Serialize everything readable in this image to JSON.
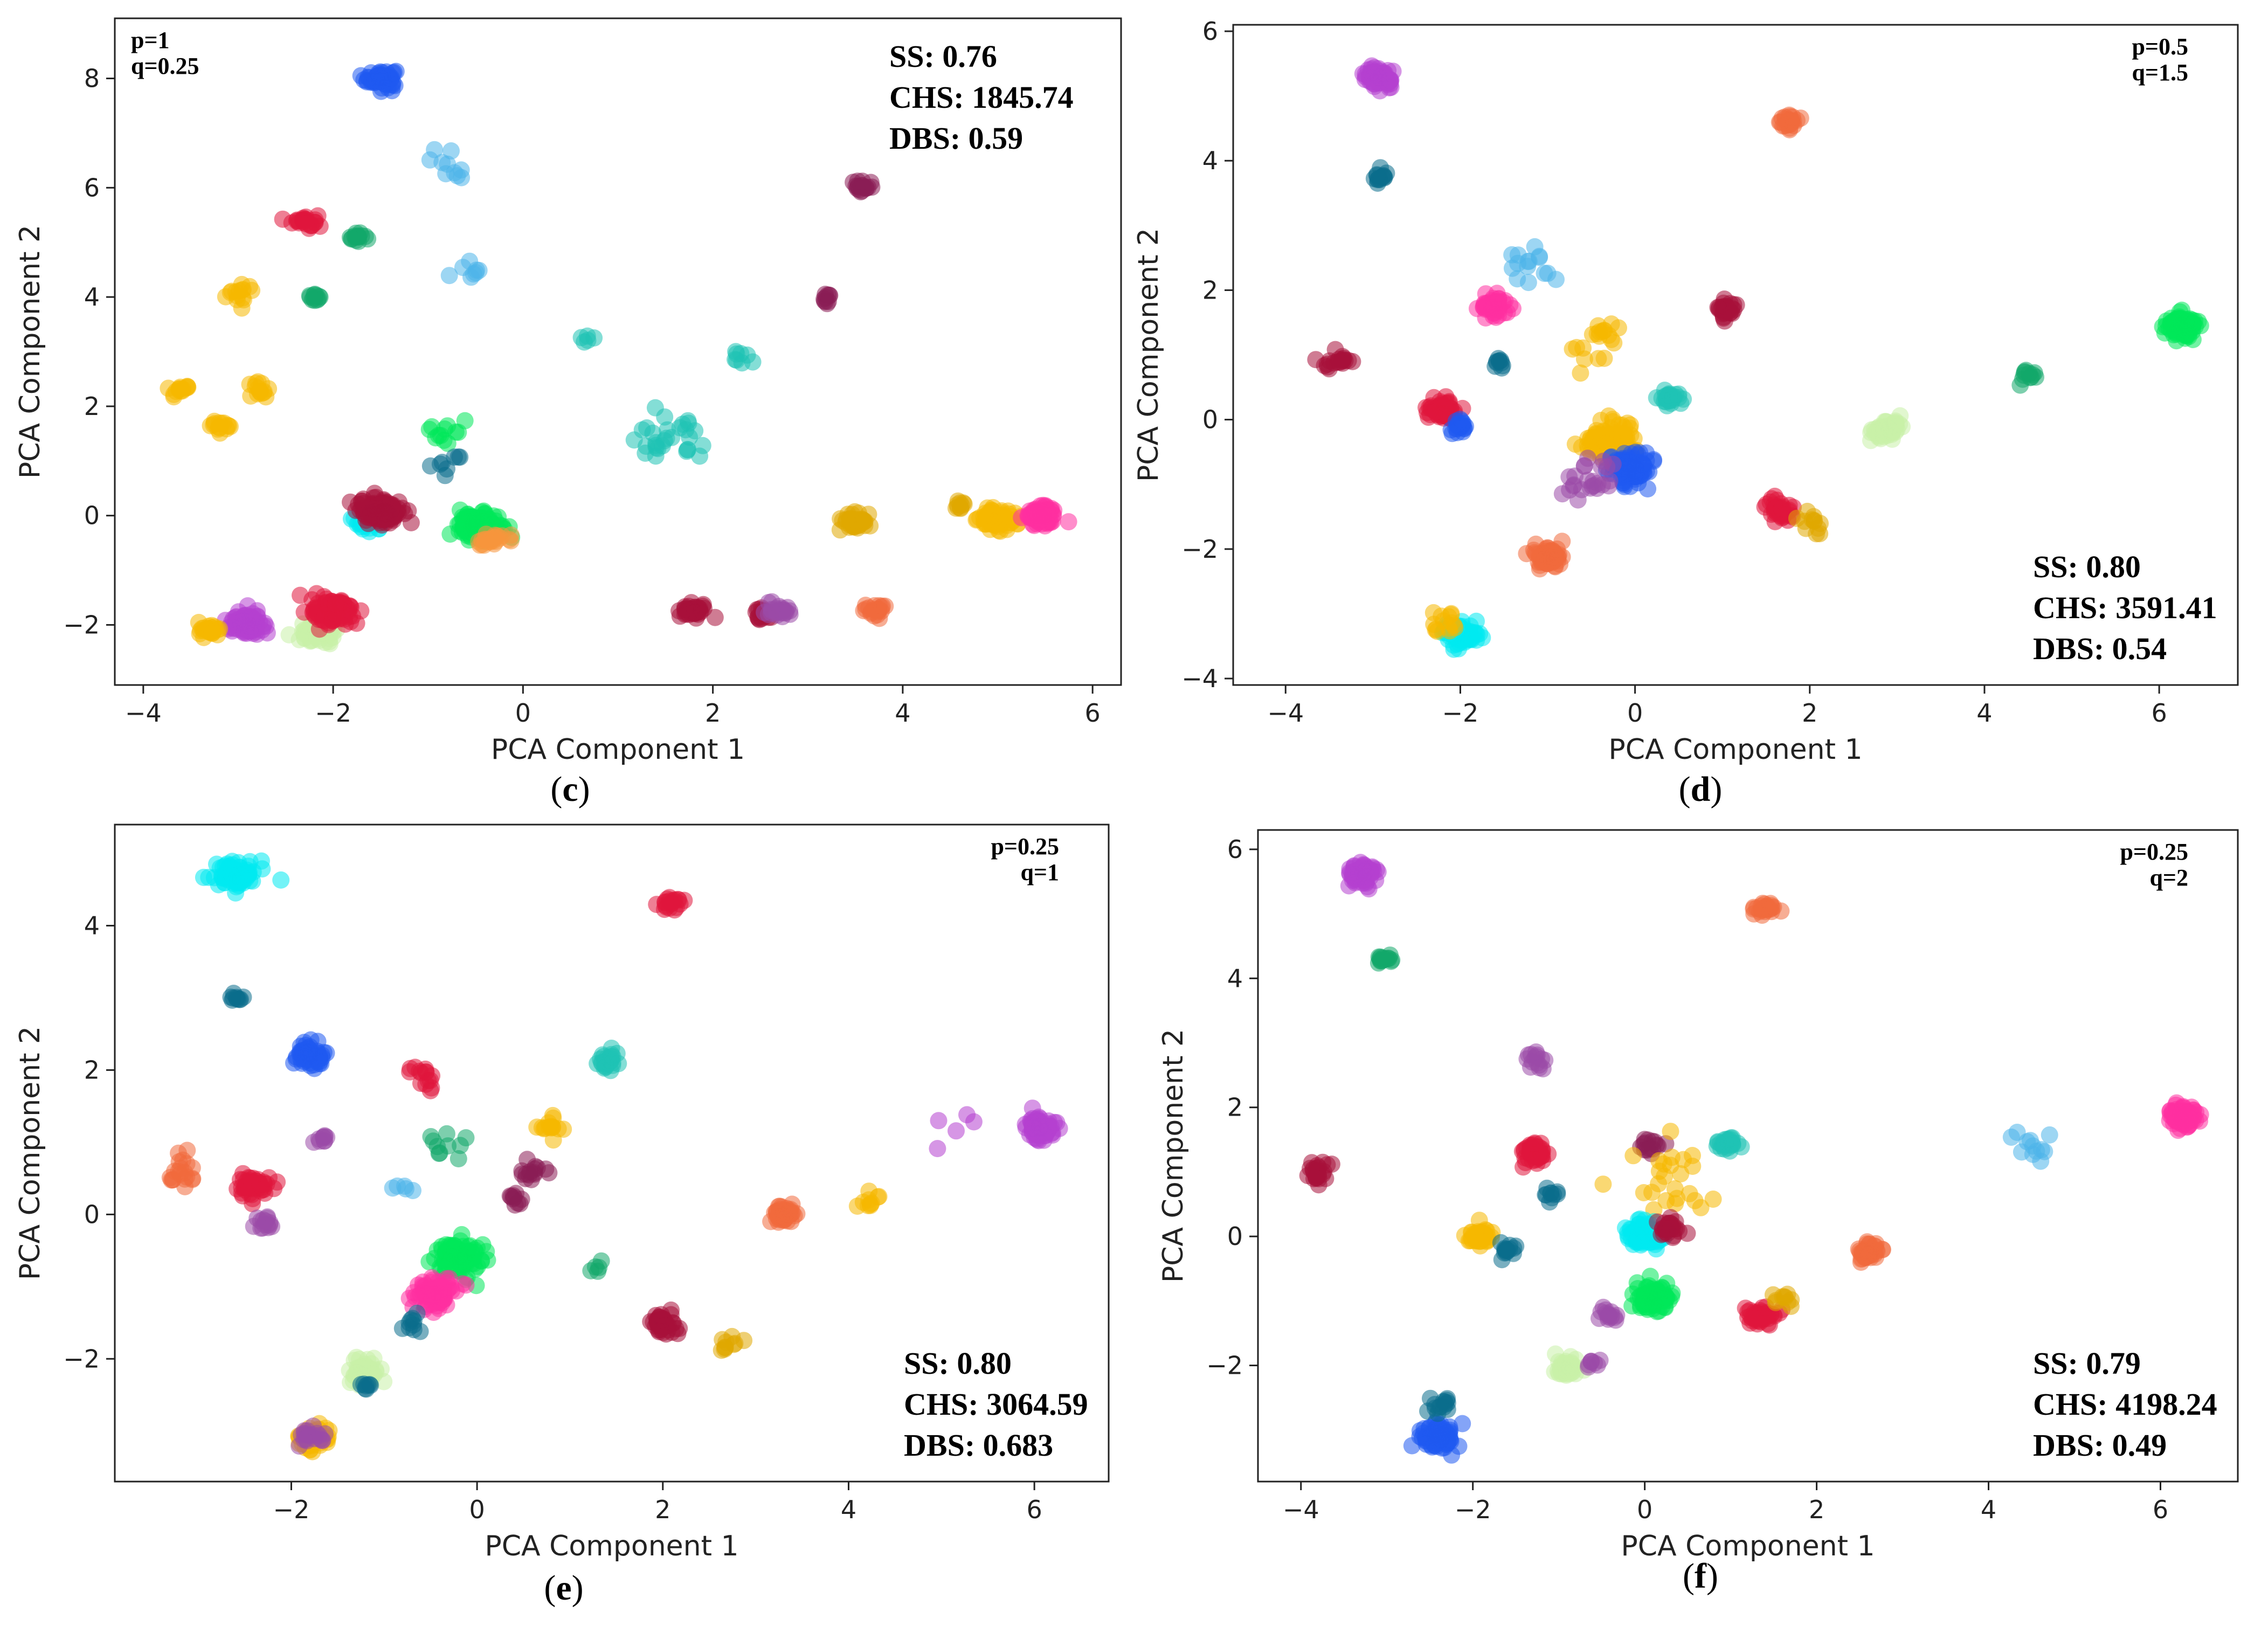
{
  "chart_data": [
    {
      "type": "scatter",
      "caption": "(c)",
      "caption_letter": "c",
      "xlabel": "PCA Component 1",
      "ylabel": "PCA Component 2",
      "xlim": [
        -4.3,
        6.3
      ],
      "ylim": [
        -3.1,
        9.1
      ],
      "xticks": [
        -4,
        -2,
        0,
        2,
        4,
        6
      ],
      "yticks": [
        -2,
        0,
        2,
        4,
        6,
        8
      ],
      "params": [
        "p=1",
        "q=0.25"
      ],
      "params_pos": "top-left",
      "metrics": [
        "SS: 0.76",
        "CHS: 1845.74",
        "DBS: 0.59"
      ],
      "metrics_pos": "top-right",
      "clusters": [
        {
          "color": "#1f5af0",
          "x": -1.5,
          "y": 8.0,
          "spread": 0.15,
          "n": 60
        },
        {
          "color": "#e0163c",
          "x": -2.3,
          "y": 5.4,
          "spread": 0.12,
          "n": 25
        },
        {
          "color": "#12a86a",
          "x": -1.75,
          "y": 5.1,
          "spread": 0.08,
          "n": 15
        },
        {
          "color": "#12a86a",
          "x": -2.2,
          "y": 4.0,
          "spread": 0.08,
          "n": 12
        },
        {
          "color": "#f5b800",
          "x": -3.0,
          "y": 4.05,
          "spread": 0.15,
          "n": 15
        },
        {
          "color": "#f5b800",
          "x": -3.6,
          "y": 2.3,
          "spread": 0.12,
          "n": 15
        },
        {
          "color": "#f5b800",
          "x": -2.8,
          "y": 2.3,
          "spread": 0.12,
          "n": 15
        },
        {
          "color": "#f5b800",
          "x": -3.2,
          "y": 1.65,
          "spread": 0.1,
          "n": 15
        },
        {
          "color": "#4db5ea",
          "x": -0.7,
          "y": 6.5,
          "spread": 0.25,
          "n": 10
        },
        {
          "color": "#4db5ea",
          "x": -0.55,
          "y": 4.4,
          "spread": 0.2,
          "n": 8
        },
        {
          "color": "#8b1d55",
          "x": 3.6,
          "y": 6.0,
          "spread": 0.12,
          "n": 18
        },
        {
          "color": "#8b1d55",
          "x": 3.2,
          "y": 3.98,
          "spread": 0.08,
          "n": 10
        },
        {
          "color": "#1fc3b5",
          "x": 1.5,
          "y": 1.4,
          "spread": 0.35,
          "n": 30
        },
        {
          "color": "#1fc3b5",
          "x": 2.3,
          "y": 2.85,
          "spread": 0.15,
          "n": 8
        },
        {
          "color": "#1fc3b5",
          "x": 0.7,
          "y": 3.25,
          "spread": 0.1,
          "n": 5
        },
        {
          "color": "#00e85a",
          "x": -0.8,
          "y": 1.5,
          "spread": 0.2,
          "n": 12
        },
        {
          "color": "#0b6e8c",
          "x": -0.8,
          "y": 1.0,
          "spread": 0.3,
          "n": 8
        },
        {
          "color": "#00e85a",
          "x": -0.45,
          "y": -0.2,
          "spread": 0.2,
          "n": 160
        },
        {
          "color": "#f8953c",
          "x": -0.35,
          "y": -0.45,
          "spread": 0.15,
          "n": 25
        },
        {
          "color": "#00eaf0",
          "x": -1.6,
          "y": -0.1,
          "spread": 0.18,
          "n": 40
        },
        {
          "color": "#a8103a",
          "x": -1.5,
          "y": 0.1,
          "spread": 0.2,
          "n": 150
        },
        {
          "color": "#b53fd0",
          "x": -2.9,
          "y": -2.0,
          "spread": 0.2,
          "n": 80
        },
        {
          "color": "#f5b800",
          "x": -3.3,
          "y": -2.1,
          "spread": 0.12,
          "n": 25
        },
        {
          "color": "#c8f0a8",
          "x": -2.15,
          "y": -2.15,
          "spread": 0.18,
          "n": 60
        },
        {
          "color": "#e0163c",
          "x": -2.0,
          "y": -1.75,
          "spread": 0.2,
          "n": 120
        },
        {
          "color": "#a8103a",
          "x": 1.8,
          "y": -1.75,
          "spread": 0.12,
          "n": 40
        },
        {
          "color": "#a8103a",
          "x": 2.5,
          "y": -1.8,
          "spread": 0.1,
          "n": 15
        },
        {
          "color": "#9b4aa8",
          "x": 2.7,
          "y": -1.75,
          "spread": 0.12,
          "n": 25
        },
        {
          "color": "#e0a800",
          "x": 3.5,
          "y": -0.1,
          "spread": 0.15,
          "n": 40
        },
        {
          "color": "#f06a3c",
          "x": 3.7,
          "y": -1.7,
          "spread": 0.12,
          "n": 20
        },
        {
          "color": "#e0a800",
          "x": 4.6,
          "y": 0.2,
          "spread": 0.1,
          "n": 10
        },
        {
          "color": "#f5b800",
          "x": 5.0,
          "y": -0.05,
          "spread": 0.18,
          "n": 80
        },
        {
          "color": "#ff2fa0",
          "x": 5.45,
          "y": 0.0,
          "spread": 0.15,
          "n": 90
        }
      ]
    },
    {
      "type": "scatter",
      "caption": "(d)",
      "caption_letter": "d",
      "xlabel": "PCA Component 1",
      "ylabel": "PCA Component 2",
      "xlim": [
        -4.6,
        6.9
      ],
      "ylim": [
        -4.1,
        6.1
      ],
      "xticks": [
        -4,
        -2,
        0,
        2,
        4,
        6
      ],
      "yticks": [
        -4,
        -2,
        0,
        2,
        4,
        6
      ],
      "params": [
        "p=0.5",
        "q=1.5"
      ],
      "params_pos": "top-right",
      "metrics": [
        "SS: 0.80",
        "CHS: 3591.41",
        "DBS: 0.54"
      ],
      "metrics_pos": "bottom-right",
      "clusters": [
        {
          "color": "#b53fd0",
          "x": -2.95,
          "y": 5.3,
          "spread": 0.15,
          "n": 60
        },
        {
          "color": "#0b6e8c",
          "x": -2.9,
          "y": 3.75,
          "spread": 0.1,
          "n": 15
        },
        {
          "color": "#f06a3c",
          "x": 1.75,
          "y": 4.6,
          "spread": 0.1,
          "n": 25
        },
        {
          "color": "#4db5ea",
          "x": -1.2,
          "y": 2.4,
          "spread": 0.25,
          "n": 15
        },
        {
          "color": "#ff2fa0",
          "x": -1.6,
          "y": 1.75,
          "spread": 0.15,
          "n": 50
        },
        {
          "color": "#0b6e8c",
          "x": -1.55,
          "y": 0.9,
          "spread": 0.08,
          "n": 10
        },
        {
          "color": "#a8103a",
          "x": -3.4,
          "y": 0.9,
          "spread": 0.15,
          "n": 20
        },
        {
          "color": "#e0163c",
          "x": -2.2,
          "y": 0.15,
          "spread": 0.15,
          "n": 60
        },
        {
          "color": "#1f5af0",
          "x": -2.0,
          "y": -0.1,
          "spread": 0.1,
          "n": 20
        },
        {
          "color": "#f5b800",
          "x": -0.4,
          "y": 1.2,
          "spread": 0.4,
          "n": 20
        },
        {
          "color": "#a8103a",
          "x": 1.05,
          "y": 1.7,
          "spread": 0.12,
          "n": 30
        },
        {
          "color": "#1fc3b5",
          "x": 0.4,
          "y": 0.35,
          "spread": 0.1,
          "n": 25
        },
        {
          "color": "#f5b800",
          "x": -0.3,
          "y": -0.35,
          "spread": 0.25,
          "n": 120
        },
        {
          "color": "#1f5af0",
          "x": -0.05,
          "y": -0.75,
          "spread": 0.2,
          "n": 100
        },
        {
          "color": "#9b4aa8",
          "x": -0.5,
          "y": -0.9,
          "spread": 0.3,
          "n": 25
        },
        {
          "color": "#f06a3c",
          "x": -1.0,
          "y": -2.1,
          "spread": 0.15,
          "n": 60
        },
        {
          "color": "#00eaf0",
          "x": -2.0,
          "y": -3.3,
          "spread": 0.18,
          "n": 70
        },
        {
          "color": "#f5b800",
          "x": -2.2,
          "y": -3.1,
          "spread": 0.15,
          "n": 15
        },
        {
          "color": "#e0163c",
          "x": 1.65,
          "y": -1.4,
          "spread": 0.15,
          "n": 40
        },
        {
          "color": "#e0a800",
          "x": 2.0,
          "y": -1.6,
          "spread": 0.2,
          "n": 12
        },
        {
          "color": "#c8f0a8",
          "x": 2.85,
          "y": -0.15,
          "spread": 0.15,
          "n": 50
        },
        {
          "color": "#00e85a",
          "x": 6.25,
          "y": 1.45,
          "spread": 0.15,
          "n": 100
        },
        {
          "color": "#12a86a",
          "x": 4.5,
          "y": 0.7,
          "spread": 0.15,
          "n": 12
        }
      ]
    },
    {
      "type": "scatter",
      "caption": "(e)",
      "caption_letter": "e",
      "xlabel": "PCA Component 1",
      "ylabel": "PCA Component 2",
      "xlim": [
        -3.9,
        6.8
      ],
      "ylim": [
        -3.7,
        5.4
      ],
      "xticks": [
        -2,
        0,
        2,
        4,
        6
      ],
      "yticks": [
        -2,
        0,
        2,
        4
      ],
      "params": [
        "p=0.25",
        "q=1"
      ],
      "params_pos": "top-right",
      "metrics": [
        "SS: 0.80",
        "CHS: 3064.59",
        "DBS: 0.683"
      ],
      "metrics_pos": "bottom-right",
      "clusters": [
        {
          "color": "#00eaf0",
          "x": -2.6,
          "y": 4.7,
          "spread": 0.2,
          "n": 80
        },
        {
          "color": "#0b6e8c",
          "x": -2.6,
          "y": 3.0,
          "spread": 0.08,
          "n": 10
        },
        {
          "color": "#1f5af0",
          "x": -1.8,
          "y": 2.2,
          "spread": 0.15,
          "n": 60
        },
        {
          "color": "#9b4aa8",
          "x": -1.7,
          "y": 1.05,
          "spread": 0.08,
          "n": 10
        },
        {
          "color": "#f06a3c",
          "x": -3.2,
          "y": 0.6,
          "spread": 0.2,
          "n": 20
        },
        {
          "color": "#e0163c",
          "x": -2.4,
          "y": 0.4,
          "spread": 0.15,
          "n": 50
        },
        {
          "color": "#9b4aa8",
          "x": -2.3,
          "y": -0.1,
          "spread": 0.1,
          "n": 15
        },
        {
          "color": "#e0163c",
          "x": 2.1,
          "y": 4.3,
          "spread": 0.1,
          "n": 20
        },
        {
          "color": "#e0163c",
          "x": -0.6,
          "y": 1.9,
          "spread": 0.15,
          "n": 15
        },
        {
          "color": "#1fc3b5",
          "x": 1.4,
          "y": 2.15,
          "spread": 0.1,
          "n": 30
        },
        {
          "color": "#12a86a",
          "x": -0.3,
          "y": 0.9,
          "spread": 0.25,
          "n": 10
        },
        {
          "color": "#f5b800",
          "x": 0.8,
          "y": 1.25,
          "spread": 0.1,
          "n": 15
        },
        {
          "color": "#8b1d55",
          "x": 0.6,
          "y": 0.6,
          "spread": 0.12,
          "n": 15
        },
        {
          "color": "#8b1d55",
          "x": 0.4,
          "y": 0.2,
          "spread": 0.1,
          "n": 10
        },
        {
          "color": "#00e85a",
          "x": -0.2,
          "y": -0.6,
          "spread": 0.2,
          "n": 120
        },
        {
          "color": "#ff2fa0",
          "x": -0.45,
          "y": -1.1,
          "spread": 0.2,
          "n": 80
        },
        {
          "color": "#0b6e8c",
          "x": -0.7,
          "y": -1.5,
          "spread": 0.1,
          "n": 10
        },
        {
          "color": "#4db5ea",
          "x": -0.8,
          "y": 0.4,
          "spread": 0.1,
          "n": 5
        },
        {
          "color": "#c8f0a8",
          "x": -1.2,
          "y": -2.2,
          "spread": 0.15,
          "n": 50
        },
        {
          "color": "#0b6e8c",
          "x": -1.2,
          "y": -2.4,
          "spread": 0.05,
          "n": 8
        },
        {
          "color": "#f5b800",
          "x": -1.75,
          "y": -3.1,
          "spread": 0.15,
          "n": 60
        },
        {
          "color": "#9b4aa8",
          "x": -1.8,
          "y": -3.1,
          "spread": 0.12,
          "n": 20
        },
        {
          "color": "#a8103a",
          "x": 2.0,
          "y": -1.5,
          "spread": 0.15,
          "n": 40
        },
        {
          "color": "#f06a3c",
          "x": 3.3,
          "y": 0.0,
          "spread": 0.12,
          "n": 50
        },
        {
          "color": "#e0a800",
          "x": 2.7,
          "y": -1.8,
          "spread": 0.12,
          "n": 10
        },
        {
          "color": "#f5b800",
          "x": 4.2,
          "y": 0.2,
          "spread": 0.1,
          "n": 10
        },
        {
          "color": "#12a86a",
          "x": 1.3,
          "y": -0.7,
          "spread": 0.15,
          "n": 5
        },
        {
          "color": "#b53fd0",
          "x": 6.05,
          "y": 1.2,
          "spread": 0.15,
          "n": 70
        },
        {
          "color": "#b53fd0",
          "x": 5.3,
          "y": 1.1,
          "spread": 0.3,
          "n": 5
        }
      ]
    },
    {
      "type": "scatter",
      "caption": "(f)",
      "caption_letter": "f",
      "xlabel": "PCA Component 1",
      "ylabel": "PCA Component 2",
      "xlim": [
        -4.5,
        6.9
      ],
      "ylim": [
        -3.8,
        6.3
      ],
      "xticks": [
        -4,
        -2,
        0,
        2,
        4,
        6
      ],
      "yticks": [
        -2,
        0,
        2,
        4,
        6
      ],
      "params": [
        "p=0.25",
        "q=2"
      ],
      "params_pos": "top-right",
      "metrics": [
        "SS: 0.79",
        "CHS: 4198.24",
        "DBS: 0.49"
      ],
      "metrics_pos": "bottom-right",
      "clusters": [
        {
          "color": "#b53fd0",
          "x": -3.3,
          "y": 5.6,
          "spread": 0.15,
          "n": 70
        },
        {
          "color": "#12a86a",
          "x": -3.05,
          "y": 4.3,
          "spread": 0.08,
          "n": 15
        },
        {
          "color": "#f06a3c",
          "x": 1.4,
          "y": 5.1,
          "spread": 0.1,
          "n": 25
        },
        {
          "color": "#9b4aa8",
          "x": -1.3,
          "y": 2.7,
          "spread": 0.15,
          "n": 15
        },
        {
          "color": "#a8103a",
          "x": -3.8,
          "y": 1.0,
          "spread": 0.15,
          "n": 25
        },
        {
          "color": "#e0163c",
          "x": -1.3,
          "y": 1.3,
          "spread": 0.15,
          "n": 50
        },
        {
          "color": "#0b6e8c",
          "x": -1.1,
          "y": 0.65,
          "spread": 0.1,
          "n": 10
        },
        {
          "color": "#8b1d55",
          "x": 0.05,
          "y": 1.4,
          "spread": 0.12,
          "n": 15
        },
        {
          "color": "#1fc3b5",
          "x": 0.95,
          "y": 1.45,
          "spread": 0.12,
          "n": 30
        },
        {
          "color": "#f5b800",
          "x": 0.3,
          "y": 0.8,
          "spread": 0.5,
          "n": 25
        },
        {
          "color": "#f5b800",
          "x": -1.9,
          "y": 0.0,
          "spread": 0.12,
          "n": 40
        },
        {
          "color": "#0b6e8c",
          "x": -1.6,
          "y": -0.2,
          "spread": 0.1,
          "n": 15
        },
        {
          "color": "#00eaf0",
          "x": 0.0,
          "y": 0.0,
          "spread": 0.2,
          "n": 80
        },
        {
          "color": "#a8103a",
          "x": 0.3,
          "y": 0.1,
          "spread": 0.15,
          "n": 30
        },
        {
          "color": "#00e85a",
          "x": 0.1,
          "y": -0.95,
          "spread": 0.18,
          "n": 100
        },
        {
          "color": "#9b4aa8",
          "x": -0.4,
          "y": -1.2,
          "spread": 0.15,
          "n": 15
        },
        {
          "color": "#c8f0a8",
          "x": -0.9,
          "y": -2.05,
          "spread": 0.15,
          "n": 40
        },
        {
          "color": "#9b4aa8",
          "x": -0.6,
          "y": -1.95,
          "spread": 0.08,
          "n": 8
        },
        {
          "color": "#1f5af0",
          "x": -2.4,
          "y": -3.1,
          "spread": 0.18,
          "n": 90
        },
        {
          "color": "#0b6e8c",
          "x": -2.35,
          "y": -2.6,
          "spread": 0.12,
          "n": 15
        },
        {
          "color": "#e0163c",
          "x": 1.35,
          "y": -1.25,
          "spread": 0.15,
          "n": 40
        },
        {
          "color": "#e0a800",
          "x": 1.6,
          "y": -1.0,
          "spread": 0.15,
          "n": 10
        },
        {
          "color": "#f06a3c",
          "x": 2.6,
          "y": -0.25,
          "spread": 0.12,
          "n": 50
        },
        {
          "color": "#4db5ea",
          "x": 4.5,
          "y": 1.4,
          "spread": 0.2,
          "n": 12
        },
        {
          "color": "#ff2fa0",
          "x": 6.25,
          "y": 1.85,
          "spread": 0.15,
          "n": 100
        }
      ]
    }
  ]
}
